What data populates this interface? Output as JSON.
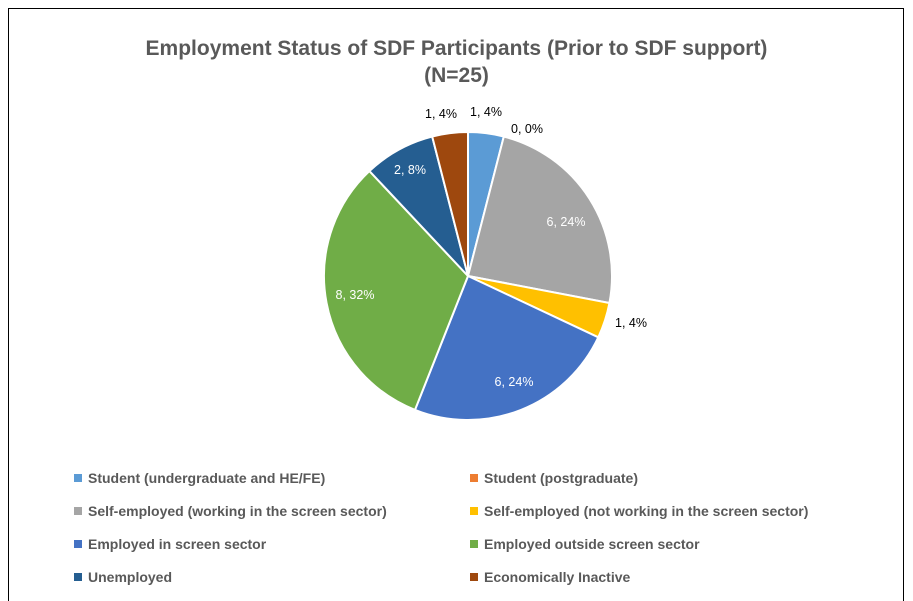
{
  "chart_data": {
    "type": "pie",
    "title_line1": "Employment Status of SDF Participants (Prior to SDF support)",
    "title_line2": "(N=25)",
    "slices": [
      {
        "name": "Student (undergraduate and HE/FE)",
        "value": 1,
        "percent": "4%",
        "label": "1, 4%",
        "color": "#5B9BD5",
        "label_color": "#000000"
      },
      {
        "name": "Student (postgraduate)",
        "value": 0,
        "percent": "0%",
        "label": "0, 0%",
        "color": "#ED7D31",
        "label_color": "#000000"
      },
      {
        "name": "Self-employed (working in the screen sector)",
        "value": 6,
        "percent": "24%",
        "label": "6, 24%",
        "color": "#A5A5A5",
        "label_color": "#FFFFFF"
      },
      {
        "name": "Self-employed (not working in the screen sector)",
        "value": 1,
        "percent": "4%",
        "label": "1, 4%",
        "color": "#FFC000",
        "label_color": "#000000"
      },
      {
        "name": "Employed in screen sector",
        "value": 6,
        "percent": "24%",
        "label": "6, 24%",
        "color": "#4472C4",
        "label_color": "#FFFFFF"
      },
      {
        "name": "Employed outside screen sector",
        "value": 8,
        "percent": "32%",
        "label": "8, 32%",
        "color": "#70AD47",
        "label_color": "#FFFFFF"
      },
      {
        "name": "Unemployed",
        "value": 2,
        "percent": "8%",
        "label": "2, 8%",
        "color": "#255E91",
        "label_color": "#FFFFFF"
      },
      {
        "name": "Economically Inactive",
        "value": 1,
        "percent": "4%",
        "label": "1, 4%",
        "color": "#9E480E",
        "label_color": "#000000"
      }
    ],
    "legend_placement": "bottom"
  }
}
